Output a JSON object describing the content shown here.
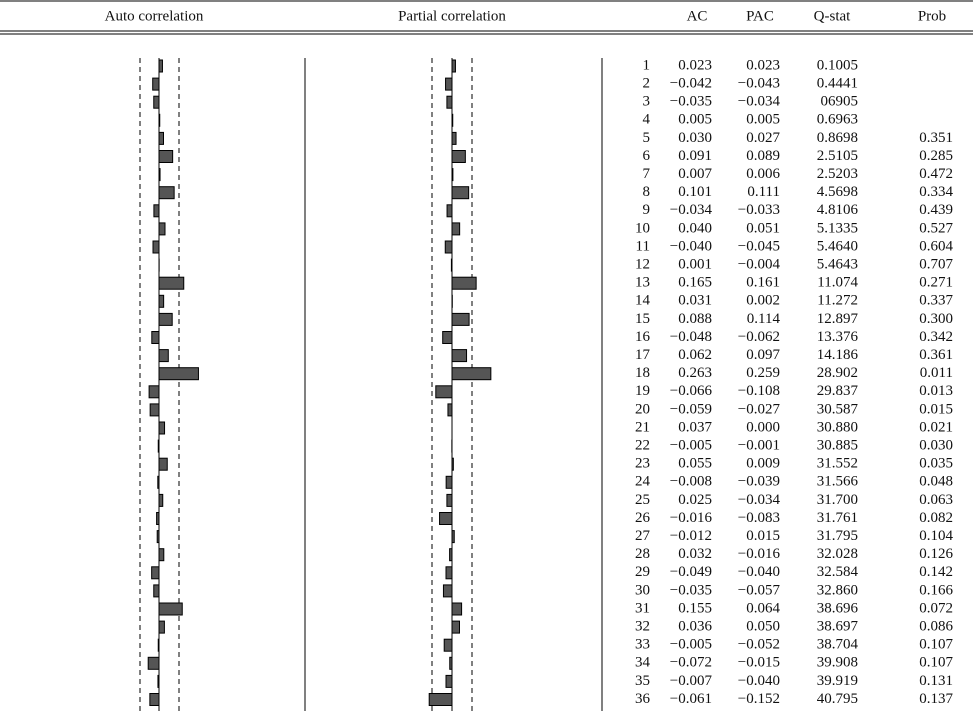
{
  "table": {
    "header": [
      "Auto correlation",
      "Partial correlation",
      "AC",
      "PAC",
      "Q-stat",
      "Prob"
    ],
    "rows": [
      [
        "1",
        "0.023",
        "0.023",
        "0.1005"
      ],
      [
        "2",
        "−0.042",
        "−0.043",
        "0.4441"
      ],
      [
        "3",
        "−0.035",
        "−0.034",
        "06905"
      ],
      [
        "4",
        "0.005",
        "0.005",
        "0.6963"
      ],
      [
        "5",
        "0.030",
        "0.027",
        "0.8698",
        "0.351"
      ],
      [
        "6",
        "0.091",
        "0.089",
        "2.5105",
        "0.285"
      ],
      [
        "7",
        "0.007",
        "0.006",
        "2.5203",
        "0.472"
      ],
      [
        "8",
        "0.101",
        "0.111",
        "4.5698",
        "0.334"
      ],
      [
        "9",
        "−0.034",
        "−0.033",
        "4.8106",
        "0.439"
      ],
      [
        "10",
        "0.040",
        "0.051",
        "5.1335",
        "0.527"
      ],
      [
        "11",
        "−0.040",
        "−0.045",
        "5.4640",
        "0.604"
      ],
      [
        "12",
        "0.001",
        "−0.004",
        "5.4643",
        "0.707"
      ],
      [
        "13",
        "0.165",
        "0.161",
        "11.074",
        "0.271"
      ],
      [
        "14",
        "0.031",
        "0.002",
        "11.272",
        "0.337"
      ],
      [
        "15",
        "0.088",
        "0.114",
        "12.897",
        "0.300"
      ],
      [
        "16",
        "−0.048",
        "−0.062",
        "13.376",
        "0.342"
      ],
      [
        "17",
        "0.062",
        "0.097",
        "14.186",
        "0.361"
      ],
      [
        "18",
        "0.263",
        "0.259",
        "28.902",
        "0.011"
      ],
      [
        "19",
        "−0.066",
        "−0.108",
        "29.837",
        "0.013"
      ],
      [
        "20",
        "−0.059",
        "−0.027",
        "30.587",
        "0.015"
      ],
      [
        "21",
        "0.037",
        "0.000",
        "30.880",
        "0.021"
      ],
      [
        "22",
        "−0.005",
        "−0.001",
        "30.885",
        "0.030"
      ],
      [
        "23",
        "0.055",
        "0.009",
        "31.552",
        "0.035"
      ],
      [
        "24",
        "−0.008",
        "−0.039",
        "31.566",
        "0.048"
      ],
      [
        "25",
        "0.025",
        "−0.034",
        "31.700",
        "0.063"
      ],
      [
        "26",
        "−0.016",
        "−0.083",
        "31.761",
        "0.082"
      ],
      [
        "27",
        "−0.012",
        "0.015",
        "31.795",
        "0.104"
      ],
      [
        "28",
        "0.032",
        "−0.016",
        "32.028",
        "0.126"
      ],
      [
        "29",
        "−0.049",
        "−0.040",
        "32.584",
        "0.142"
      ],
      [
        "30",
        "−0.035",
        "−0.057",
        "32.860",
        "0.166"
      ],
      [
        "31",
        "0.155",
        "0.064",
        "38.696",
        "0.072"
      ],
      [
        "32",
        "0.036",
        "0.050",
        "38.697",
        "0.086"
      ],
      [
        "33",
        "−0.005",
        "−0.052",
        "38.704",
        "0.107"
      ],
      [
        "34",
        "−0.072",
        "−0.015",
        "39.908",
        "0.107"
      ],
      [
        "35",
        "−0.007",
        "−0.040",
        "39.919",
        "0.131"
      ],
      [
        "36",
        "−0.061",
        "−0.152",
        "40.795",
        "0.137"
      ]
    ]
  }
}
